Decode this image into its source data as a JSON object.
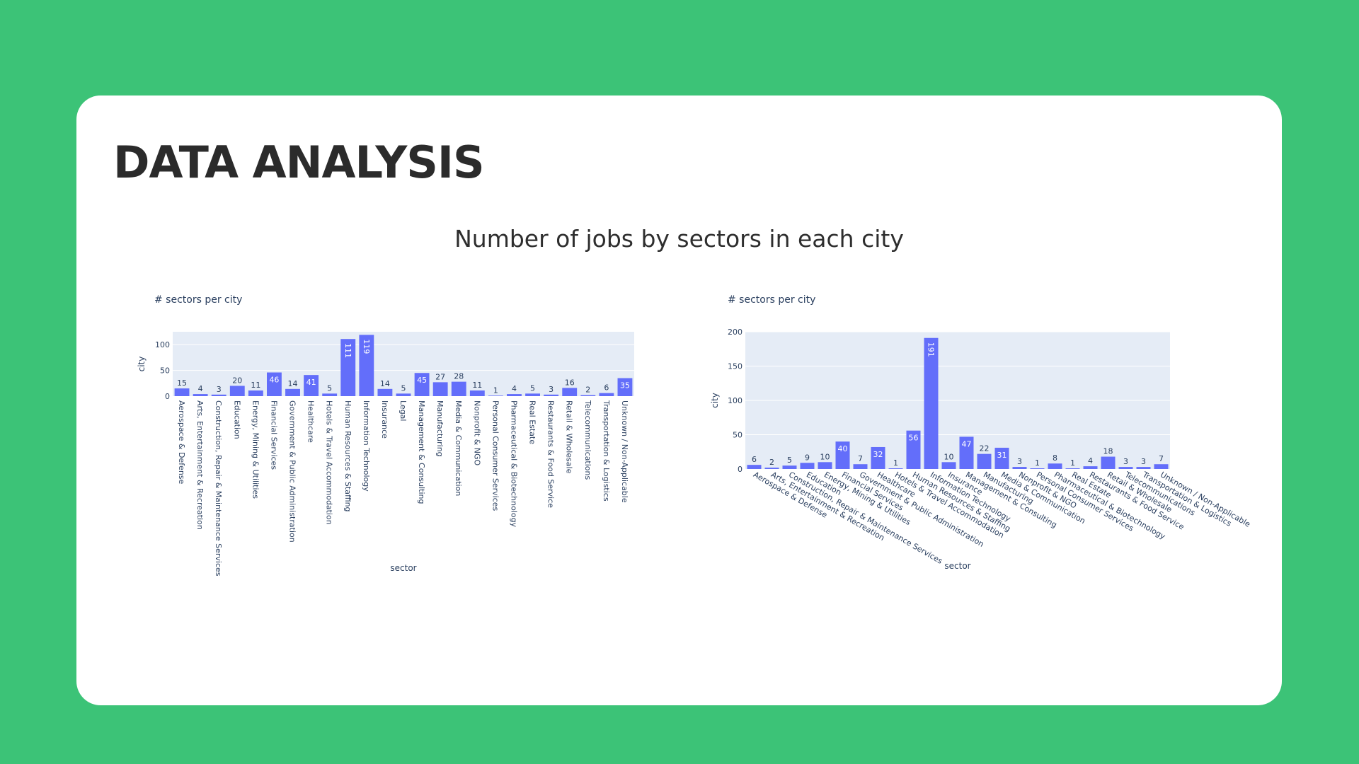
{
  "page": {
    "title": "DATA ANALYSIS",
    "subtitle": "Number of jobs by sectors in each city"
  },
  "colors": {
    "background": "#3cc377",
    "card": "#ffffff",
    "bar": "#636efa",
    "plot_bg": "#e5ecf6",
    "text": "#2a3f5f"
  },
  "chart_data": [
    {
      "type": "bar",
      "title": "# sectors per city",
      "xlabel": "sector",
      "ylabel": "city",
      "ylim": [
        0,
        125
      ],
      "yticks": [
        0,
        50,
        100
      ],
      "grid": true,
      "tick_angle": 90,
      "categories": [
        "Aerospace & Defense",
        "Arts, Entertainment & Recreation",
        "Construction, Repair & Maintenance Services",
        "Education",
        "Energy, Mining & Utilities",
        "Financial Services",
        "Government & Public Administration",
        "Healthcare",
        "Hotels & Travel Accommodation",
        "Human Resources & Staffing",
        "Information Technology",
        "Insurance",
        "Legal",
        "Management & Consulting",
        "Manufacturing",
        "Media & Communication",
        "Nonprofit & NGO",
        "Personal Consumer Services",
        "Pharmaceutical & Biotechnology",
        "Real Estate",
        "Restaurants & Food Service",
        "Retail & Wholesale",
        "Telecommunications",
        "Transportation & Logistics",
        "Unknown / Non-Applicable"
      ],
      "values": [
        15,
        4,
        3,
        20,
        11,
        46,
        14,
        41,
        5,
        111,
        119,
        14,
        5,
        45,
        27,
        28,
        11,
        1,
        4,
        5,
        3,
        16,
        2,
        6,
        35
      ]
    },
    {
      "type": "bar",
      "title": "# sectors per city",
      "xlabel": "sector",
      "ylabel": "city",
      "ylim": [
        0,
        200
      ],
      "yticks": [
        0,
        50,
        100,
        150,
        200
      ],
      "grid": true,
      "tick_angle": 30,
      "categories": [
        "Aerospace & Defense",
        "Arts, Entertainment & Recreation",
        "Construction, Repair & Maintenance Services",
        "Education",
        "Energy, Mining & Utilities",
        "Financial Services",
        "Government & Public Administration",
        "Healthcare",
        "Hotels & Travel Accommodation",
        "Human Resources & Staffing",
        "Information Technology",
        "Insurance",
        "Management & Consulting",
        "Manufacturing",
        "Media & Communication",
        "Nonprofit & NGO",
        "Personal Consumer Services",
        "Pharmaceutical & Biotechnology",
        "Real Estate",
        "Restaurants & Food Service",
        "Retail & Wholesale",
        "Telecommunications",
        "Transportation & Logistics",
        "Unknown / Non-Applicable"
      ],
      "values": [
        6,
        2,
        5,
        9,
        10,
        40,
        7,
        32,
        1,
        56,
        191,
        10,
        47,
        22,
        31,
        3,
        1,
        8,
        1,
        4,
        18,
        3,
        3,
        7
      ]
    }
  ]
}
